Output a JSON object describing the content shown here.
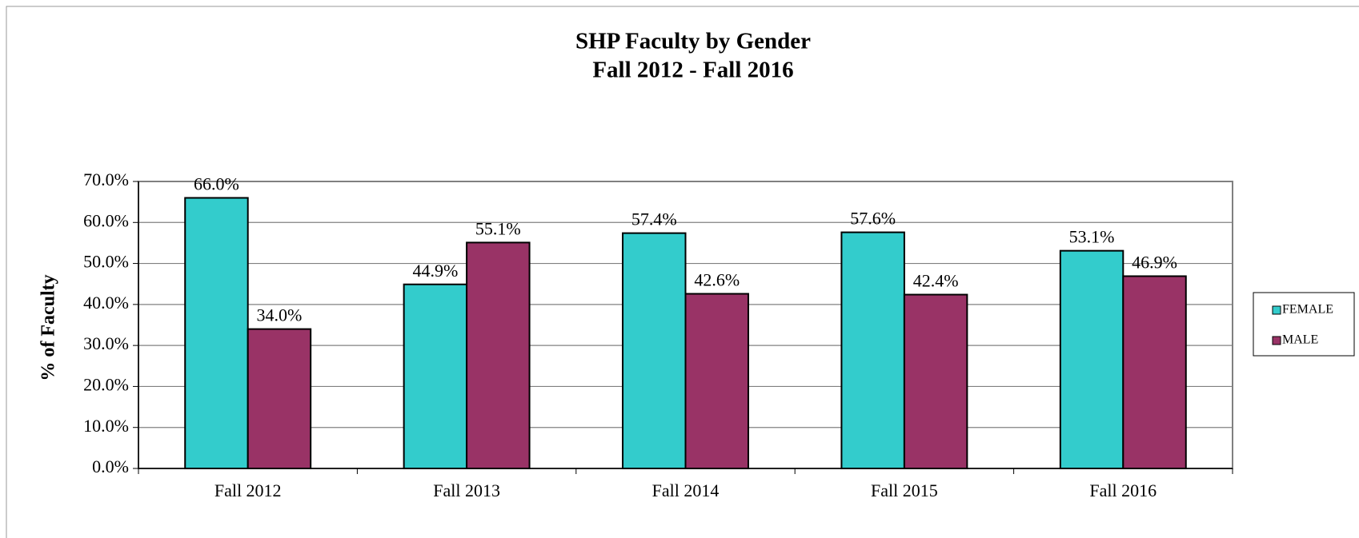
{
  "chart_data": {
    "type": "bar",
    "title": "SHP Faculty by Gender",
    "subtitle": "Fall 2012 - Fall 2016",
    "y_label": "% of Faculty",
    "categories": [
      "Fall 2012",
      "Fall 2013",
      "Fall 2014",
      "Fall 2015",
      "Fall 2016"
    ],
    "series": [
      {
        "name": "FEMALE",
        "color": "#33cccc",
        "values": [
          66.0,
          44.9,
          57.4,
          57.6,
          53.1
        ],
        "value_labels": [
          "66.0%",
          "44.9%",
          "57.4%",
          "57.6%",
          "53.1%"
        ]
      },
      {
        "name": "MALE",
        "color": "#993366",
        "values": [
          34.0,
          55.1,
          42.6,
          42.4,
          46.9
        ],
        "value_labels": [
          "34.0%",
          "55.1%",
          "42.6%",
          "42.4%",
          "46.9%"
        ]
      }
    ],
    "ylim": [
      0,
      70
    ],
    "yticks": [
      {
        "value": 0,
        "label": "0.0%"
      },
      {
        "value": 10,
        "label": "10.0%"
      },
      {
        "value": 20,
        "label": "20.0%"
      },
      {
        "value": 30,
        "label": "30.0%"
      },
      {
        "value": 40,
        "label": "40.0%"
      },
      {
        "value": 50,
        "label": "50.0%"
      },
      {
        "value": 60,
        "label": "60.0%"
      },
      {
        "value": 70,
        "label": "70.0%"
      }
    ],
    "grid": true,
    "legend": "right"
  }
}
